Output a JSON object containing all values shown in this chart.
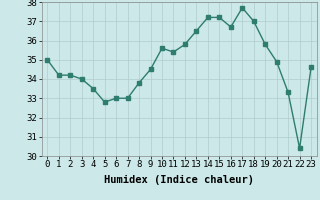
{
  "x": [
    0,
    1,
    2,
    3,
    4,
    5,
    6,
    7,
    8,
    9,
    10,
    11,
    12,
    13,
    14,
    15,
    16,
    17,
    18,
    19,
    20,
    21,
    22,
    23
  ],
  "y": [
    35.0,
    34.2,
    34.2,
    34.0,
    33.5,
    32.8,
    33.0,
    33.0,
    33.8,
    34.5,
    35.6,
    35.4,
    35.8,
    36.5,
    37.2,
    37.2,
    36.7,
    37.7,
    37.0,
    35.8,
    34.9,
    33.3,
    30.4,
    34.6
  ],
  "line_color": "#2e7d6e",
  "marker": "s",
  "marker_size": 2.5,
  "line_width": 1.0,
  "bg_color": "#cce8e8",
  "xlabel": "Humidex (Indice chaleur)",
  "xlabel_fontsize": 7.5,
  "tick_fontsize": 6.5,
  "ylim": [
    30,
    38
  ],
  "xlim": [
    -0.5,
    23.5
  ],
  "yticks": [
    30,
    31,
    32,
    33,
    34,
    35,
    36,
    37,
    38
  ],
  "xticks": [
    0,
    1,
    2,
    3,
    4,
    5,
    6,
    7,
    8,
    9,
    10,
    11,
    12,
    13,
    14,
    15,
    16,
    17,
    18,
    19,
    20,
    21,
    22,
    23
  ],
  "grid_color": "#b0cccc",
  "grid_linewidth": 0.5
}
